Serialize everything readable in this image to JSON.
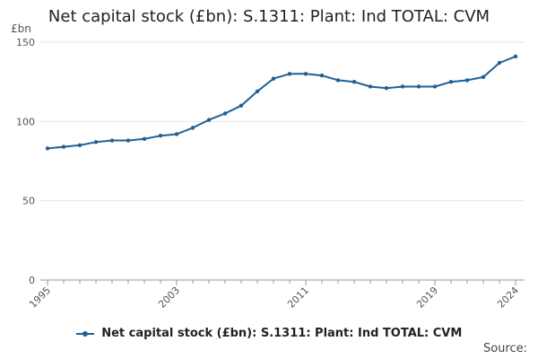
{
  "chart_data": {
    "type": "line",
    "title": "Net capital stock (£bn): S.1311: Plant: Ind TOTAL: CVM",
    "ylabel": "£bn",
    "xlabel": "",
    "ylim": [
      0,
      150
    ],
    "xlim": [
      1995,
      2024
    ],
    "y_ticks": [
      0,
      50,
      100,
      150
    ],
    "x_ticks": [
      1995,
      2003,
      2011,
      2019,
      2024
    ],
    "grid": "horizontal",
    "legend": "bottom",
    "x": [
      1995,
      1996,
      1997,
      1998,
      1999,
      2000,
      2001,
      2002,
      2003,
      2004,
      2005,
      2006,
      2007,
      2008,
      2009,
      2010,
      2011,
      2012,
      2013,
      2014,
      2015,
      2016,
      2017,
      2018,
      2019,
      2020,
      2021,
      2022,
      2023,
      2024
    ],
    "series": [
      {
        "name": "Net capital stock (£bn): S.1311: Plant: Ind TOTAL: CVM",
        "color": "#206095",
        "values": [
          83,
          84,
          85,
          87,
          88,
          88,
          89,
          91,
          92,
          96,
          101,
          105,
          110,
          119,
          127,
          130,
          130,
          129,
          126,
          125,
          122,
          121,
          122,
          122,
          122,
          125,
          126,
          128,
          137,
          141
        ]
      }
    ]
  },
  "footer": {
    "source_label": "Source:"
  },
  "colors": {
    "series": "#206095",
    "grid": "#e4e4e4",
    "axis": "#999999"
  }
}
